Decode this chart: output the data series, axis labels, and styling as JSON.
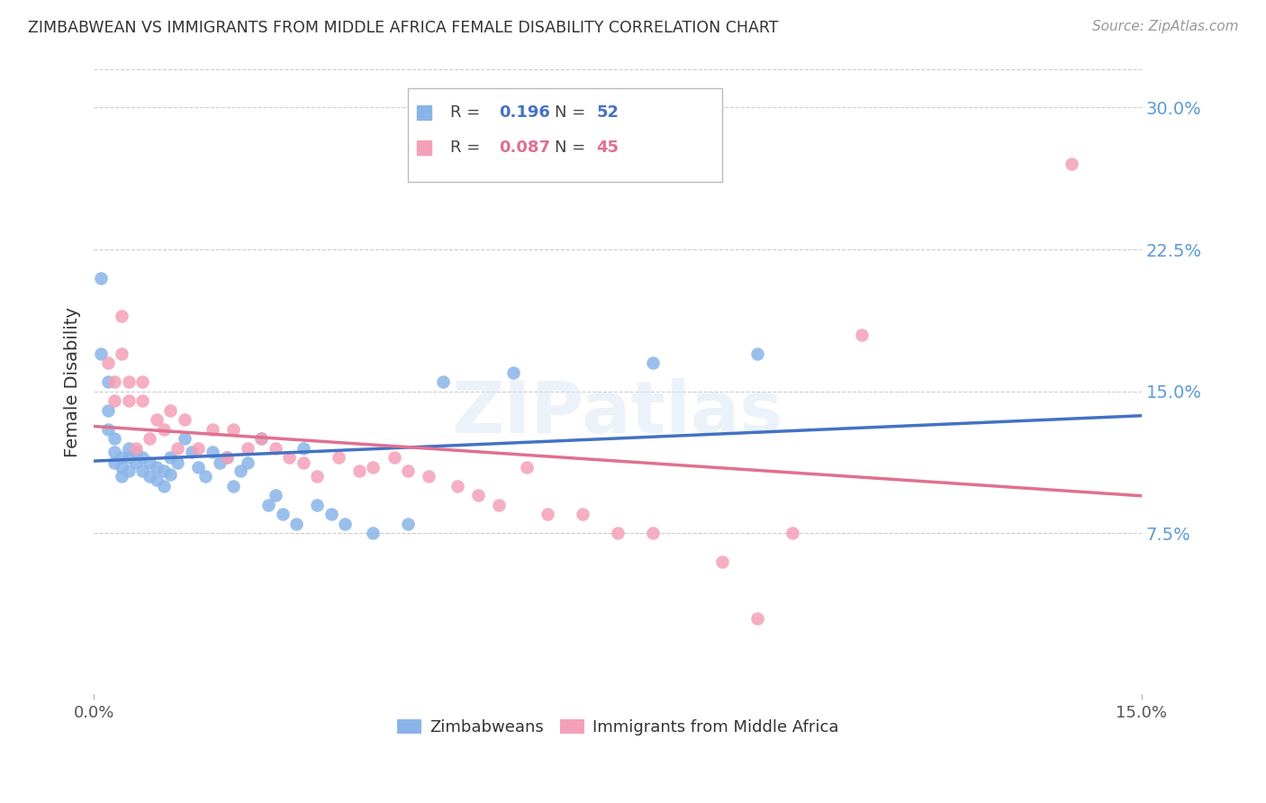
{
  "title": "ZIMBABWEAN VS IMMIGRANTS FROM MIDDLE AFRICA FEMALE DISABILITY CORRELATION CHART",
  "source": "Source: ZipAtlas.com",
  "ylabel": "Female Disability",
  "xlim": [
    0.0,
    0.15
  ],
  "ylim": [
    -0.01,
    0.32
  ],
  "yticks": [
    0.075,
    0.15,
    0.225,
    0.3
  ],
  "xticks": [
    0.0,
    0.15
  ],
  "grid_color": "#cccccc",
  "background_color": "#ffffff",
  "zimbabwean_color": "#8ab4e8",
  "immigrant_color": "#f4a0b8",
  "line_blue": "#4472c4",
  "line_pink": "#e07090",
  "R_zimbabwean": 0.196,
  "N_zimbabwean": 52,
  "R_immigrant": 0.087,
  "N_immigrant": 45,
  "zimbabweans_x": [
    0.001,
    0.001,
    0.002,
    0.002,
    0.002,
    0.003,
    0.003,
    0.003,
    0.004,
    0.004,
    0.004,
    0.005,
    0.005,
    0.005,
    0.006,
    0.006,
    0.007,
    0.007,
    0.008,
    0.008,
    0.009,
    0.009,
    0.01,
    0.01,
    0.011,
    0.011,
    0.012,
    0.013,
    0.014,
    0.015,
    0.016,
    0.017,
    0.018,
    0.019,
    0.02,
    0.021,
    0.022,
    0.024,
    0.025,
    0.026,
    0.027,
    0.029,
    0.03,
    0.032,
    0.034,
    0.036,
    0.04,
    0.045,
    0.05,
    0.06,
    0.08,
    0.095
  ],
  "zimbabweans_y": [
    0.21,
    0.17,
    0.155,
    0.14,
    0.13,
    0.125,
    0.118,
    0.112,
    0.115,
    0.11,
    0.105,
    0.12,
    0.115,
    0.108,
    0.118,
    0.112,
    0.115,
    0.108,
    0.112,
    0.105,
    0.11,
    0.103,
    0.108,
    0.1,
    0.115,
    0.106,
    0.112,
    0.125,
    0.118,
    0.11,
    0.105,
    0.118,
    0.112,
    0.115,
    0.1,
    0.108,
    0.112,
    0.125,
    0.09,
    0.095,
    0.085,
    0.08,
    0.12,
    0.09,
    0.085,
    0.08,
    0.075,
    0.08,
    0.155,
    0.16,
    0.165,
    0.17
  ],
  "immigrants_x": [
    0.002,
    0.003,
    0.003,
    0.004,
    0.004,
    0.005,
    0.005,
    0.006,
    0.007,
    0.007,
    0.008,
    0.009,
    0.01,
    0.011,
    0.012,
    0.013,
    0.015,
    0.017,
    0.019,
    0.02,
    0.022,
    0.024,
    0.026,
    0.028,
    0.03,
    0.032,
    0.035,
    0.038,
    0.04,
    0.043,
    0.045,
    0.048,
    0.052,
    0.055,
    0.058,
    0.062,
    0.065,
    0.07,
    0.075,
    0.08,
    0.09,
    0.095,
    0.1,
    0.11,
    0.14
  ],
  "immigrants_y": [
    0.165,
    0.155,
    0.145,
    0.19,
    0.17,
    0.155,
    0.145,
    0.12,
    0.155,
    0.145,
    0.125,
    0.135,
    0.13,
    0.14,
    0.12,
    0.135,
    0.12,
    0.13,
    0.115,
    0.13,
    0.12,
    0.125,
    0.12,
    0.115,
    0.112,
    0.105,
    0.115,
    0.108,
    0.11,
    0.115,
    0.108,
    0.105,
    0.1,
    0.095,
    0.09,
    0.11,
    0.085,
    0.085,
    0.075,
    0.075,
    0.06,
    0.03,
    0.075,
    0.18,
    0.27
  ],
  "legend_R1_color": "#4472c4",
  "legend_R2_color": "#e07090",
  "ytick_color": "#5b9bd5",
  "xtick_color": "#555555"
}
